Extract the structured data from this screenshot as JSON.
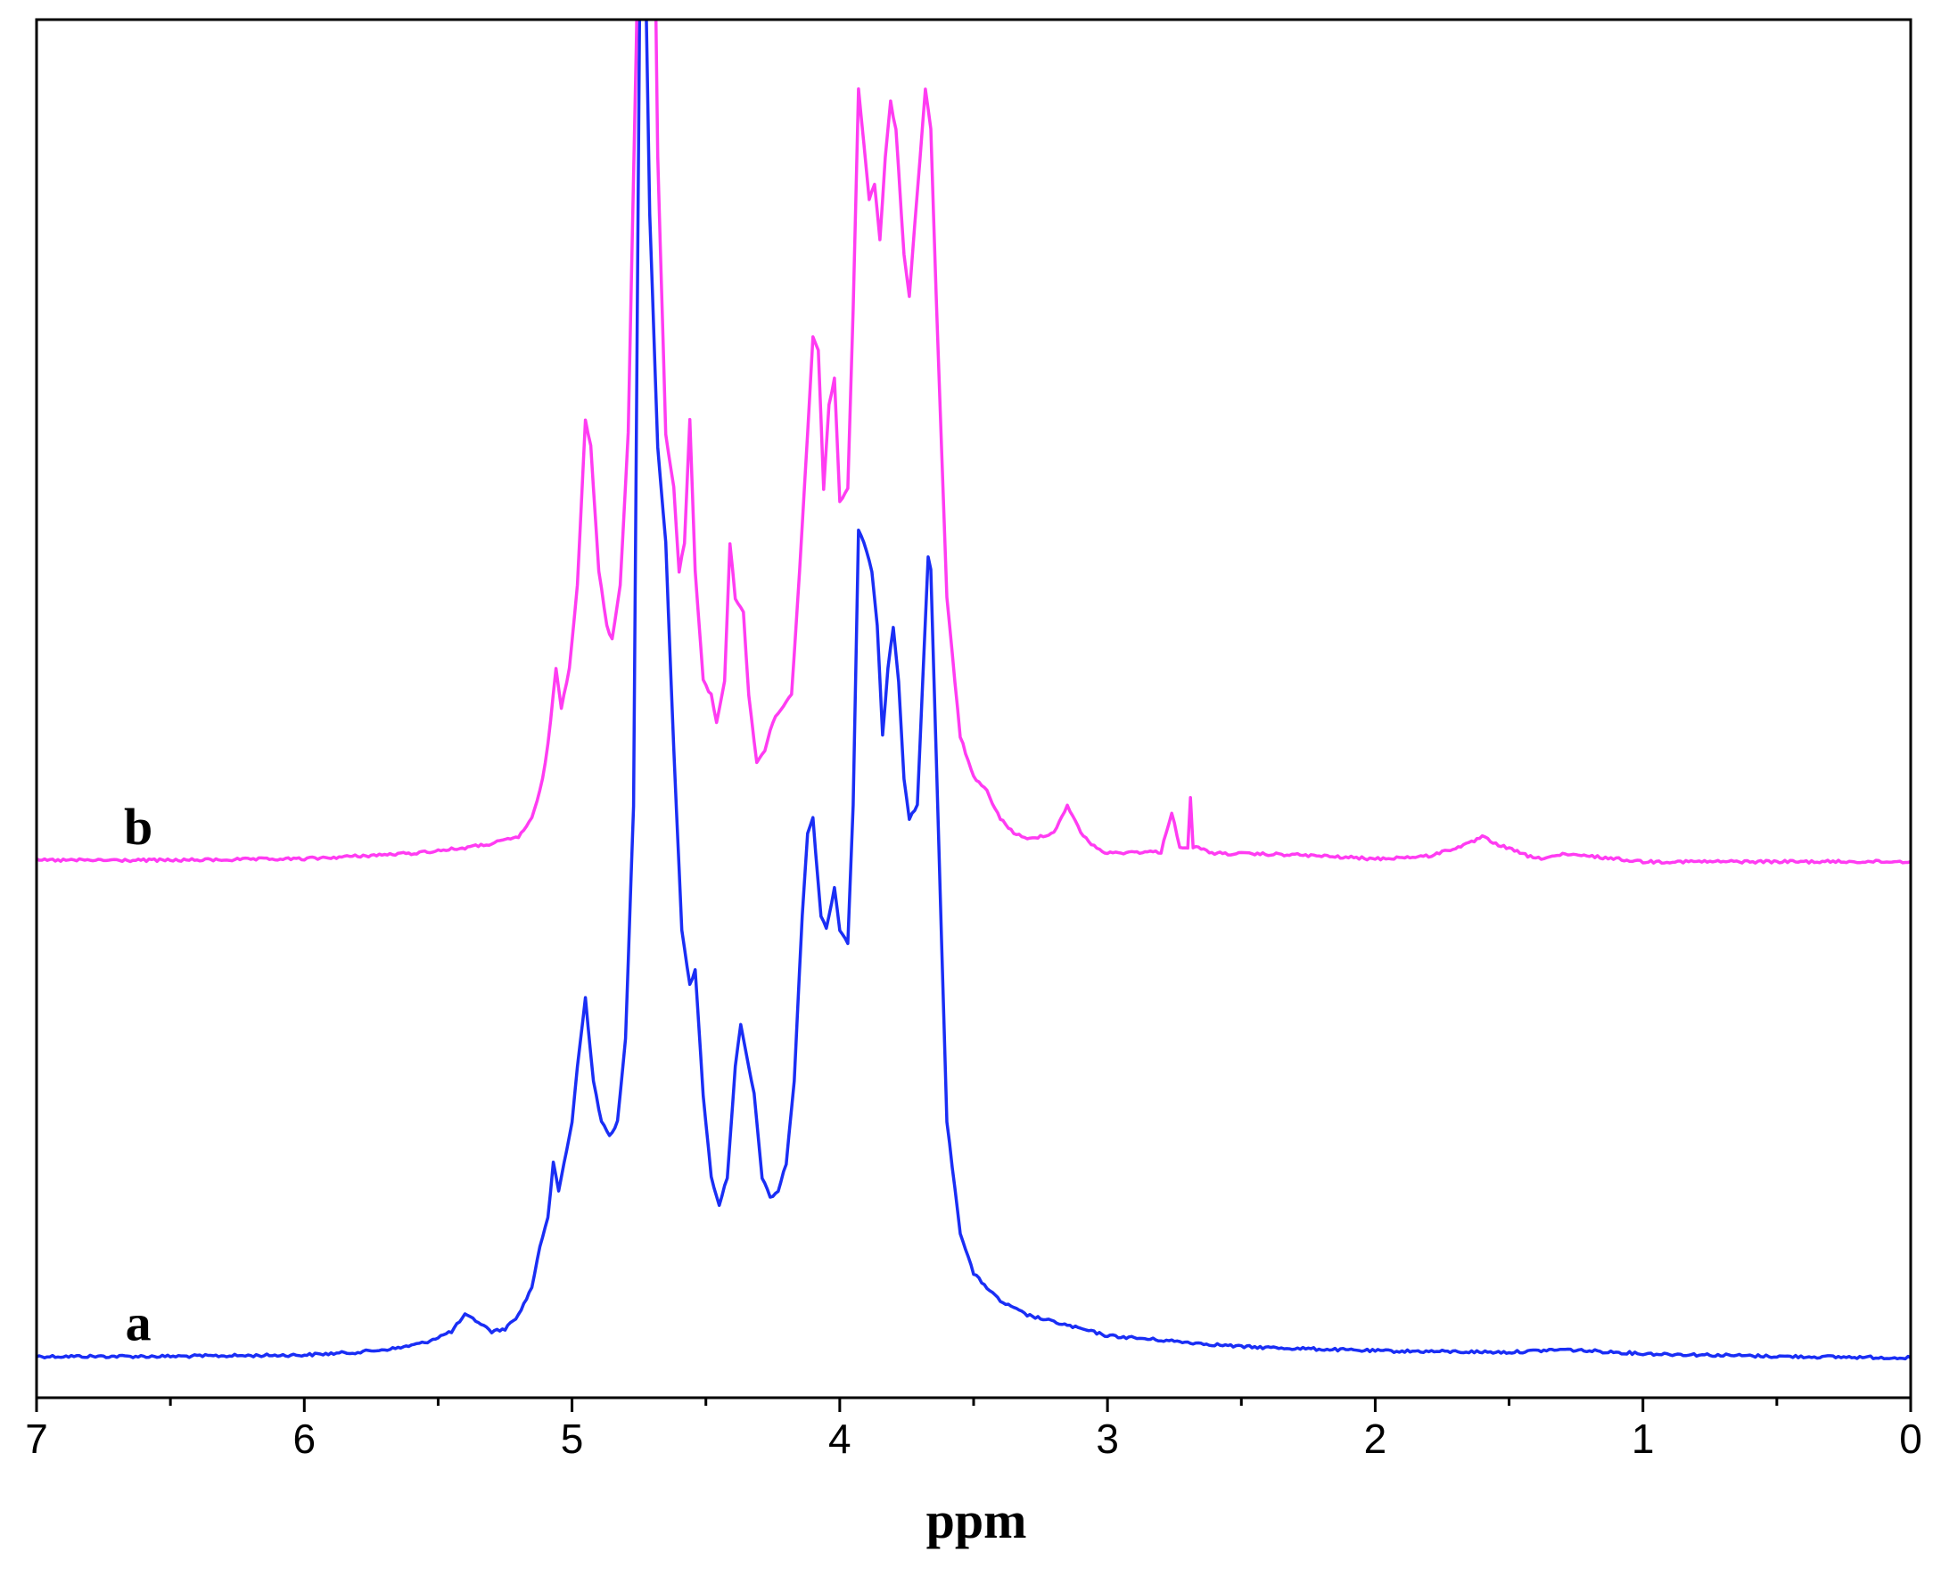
{
  "chart_data": {
    "type": "line",
    "title": "",
    "xlabel": "ppm",
    "ylabel": "",
    "xlim": [
      7,
      0
    ],
    "x_reversed": true,
    "ylim": [
      0,
      1
    ],
    "grid": false,
    "legend": "none",
    "x_ticks": [
      7,
      6,
      5,
      4,
      3,
      2,
      1,
      0
    ],
    "x_tick_labels": [
      "7",
      "6",
      "5",
      "4",
      "3",
      "2",
      "1",
      "0"
    ],
    "series": [
      {
        "label": "a",
        "color": "#1a2ef5",
        "baseline": 0.03,
        "points": [
          [
            7.0,
            0.03
          ],
          [
            6.5,
            0.03
          ],
          [
            6.0,
            0.031
          ],
          [
            5.8,
            0.033
          ],
          [
            5.65,
            0.036
          ],
          [
            5.55,
            0.04
          ],
          [
            5.45,
            0.048
          ],
          [
            5.4,
            0.06
          ],
          [
            5.35,
            0.055
          ],
          [
            5.3,
            0.048
          ],
          [
            5.25,
            0.05
          ],
          [
            5.2,
            0.06
          ],
          [
            5.15,
            0.08
          ],
          [
            5.12,
            0.11
          ],
          [
            5.09,
            0.13
          ],
          [
            5.07,
            0.17
          ],
          [
            5.05,
            0.15
          ],
          [
            5.02,
            0.18
          ],
          [
            5.0,
            0.2
          ],
          [
            4.98,
            0.24
          ],
          [
            4.95,
            0.29
          ],
          [
            4.92,
            0.23
          ],
          [
            4.89,
            0.2
          ],
          [
            4.86,
            0.19
          ],
          [
            4.83,
            0.2
          ],
          [
            4.8,
            0.26
          ],
          [
            4.77,
            0.43
          ],
          [
            4.74,
            1.2
          ],
          [
            4.71,
            0.86
          ],
          [
            4.68,
            0.69
          ],
          [
            4.65,
            0.62
          ],
          [
            4.62,
            0.47
          ],
          [
            4.59,
            0.34
          ],
          [
            4.56,
            0.3
          ],
          [
            4.54,
            0.31
          ],
          [
            4.51,
            0.22
          ],
          [
            4.48,
            0.16
          ],
          [
            4.45,
            0.14
          ],
          [
            4.42,
            0.16
          ],
          [
            4.39,
            0.24
          ],
          [
            4.37,
            0.27
          ],
          [
            4.35,
            0.25
          ],
          [
            4.32,
            0.22
          ],
          [
            4.29,
            0.16
          ],
          [
            4.26,
            0.145
          ],
          [
            4.23,
            0.15
          ],
          [
            4.2,
            0.17
          ],
          [
            4.17,
            0.23
          ],
          [
            4.14,
            0.35
          ],
          [
            4.12,
            0.41
          ],
          [
            4.1,
            0.42
          ],
          [
            4.07,
            0.35
          ],
          [
            4.05,
            0.34
          ],
          [
            4.02,
            0.37
          ],
          [
            4.0,
            0.34
          ],
          [
            3.97,
            0.33
          ],
          [
            3.95,
            0.43
          ],
          [
            3.93,
            0.63
          ],
          [
            3.91,
            0.62
          ],
          [
            3.88,
            0.6
          ],
          [
            3.86,
            0.56
          ],
          [
            3.84,
            0.48
          ],
          [
            3.82,
            0.53
          ],
          [
            3.8,
            0.56
          ],
          [
            3.78,
            0.52
          ],
          [
            3.76,
            0.45
          ],
          [
            3.74,
            0.42
          ],
          [
            3.71,
            0.43
          ],
          [
            3.69,
            0.52
          ],
          [
            3.67,
            0.61
          ],
          [
            3.66,
            0.6
          ],
          [
            3.63,
            0.4
          ],
          [
            3.6,
            0.2
          ],
          [
            3.55,
            0.12
          ],
          [
            3.5,
            0.09
          ],
          [
            3.4,
            0.07
          ],
          [
            3.3,
            0.06
          ],
          [
            3.0,
            0.045
          ],
          [
            2.5,
            0.037
          ],
          [
            2.0,
            0.034
          ],
          [
            1.5,
            0.033
          ],
          [
            1.3,
            0.035
          ],
          [
            1.0,
            0.032
          ],
          [
            0.5,
            0.03
          ],
          [
            0.0,
            0.029
          ]
        ]
      },
      {
        "label": "b",
        "color": "#ff3cf2",
        "baseline": 0.39,
        "points": [
          [
            7.0,
            0.39
          ],
          [
            6.5,
            0.39
          ],
          [
            6.0,
            0.391
          ],
          [
            5.8,
            0.393
          ],
          [
            5.6,
            0.395
          ],
          [
            5.4,
            0.399
          ],
          [
            5.3,
            0.402
          ],
          [
            5.2,
            0.407
          ],
          [
            5.15,
            0.42
          ],
          [
            5.12,
            0.44
          ],
          [
            5.1,
            0.46
          ],
          [
            5.08,
            0.49
          ],
          [
            5.06,
            0.53
          ],
          [
            5.04,
            0.5
          ],
          [
            5.01,
            0.53
          ],
          [
            4.98,
            0.59
          ],
          [
            4.95,
            0.71
          ],
          [
            4.93,
            0.69
          ],
          [
            4.9,
            0.6
          ],
          [
            4.87,
            0.56
          ],
          [
            4.85,
            0.55
          ],
          [
            4.82,
            0.59
          ],
          [
            4.79,
            0.7
          ],
          [
            4.76,
            0.98
          ],
          [
            4.74,
            1.2
          ],
          [
            4.7,
            1.2
          ],
          [
            4.68,
            0.9
          ],
          [
            4.65,
            0.7
          ],
          [
            4.62,
            0.66
          ],
          [
            4.6,
            0.6
          ],
          [
            4.58,
            0.62
          ],
          [
            4.56,
            0.71
          ],
          [
            4.54,
            0.6
          ],
          [
            4.51,
            0.52
          ],
          [
            4.48,
            0.51
          ],
          [
            4.46,
            0.49
          ],
          [
            4.43,
            0.52
          ],
          [
            4.41,
            0.62
          ],
          [
            4.39,
            0.58
          ],
          [
            4.36,
            0.57
          ],
          [
            4.34,
            0.51
          ],
          [
            4.31,
            0.46
          ],
          [
            4.28,
            0.47
          ],
          [
            4.25,
            0.49
          ],
          [
            4.22,
            0.5
          ],
          [
            4.18,
            0.51
          ],
          [
            4.15,
            0.6
          ],
          [
            4.12,
            0.7
          ],
          [
            4.1,
            0.77
          ],
          [
            4.08,
            0.76
          ],
          [
            4.06,
            0.66
          ],
          [
            4.04,
            0.72
          ],
          [
            4.02,
            0.74
          ],
          [
            4.0,
            0.65
          ],
          [
            3.97,
            0.66
          ],
          [
            3.95,
            0.79
          ],
          [
            3.93,
            0.95
          ],
          [
            3.91,
            0.91
          ],
          [
            3.89,
            0.87
          ],
          [
            3.87,
            0.88
          ],
          [
            3.85,
            0.84
          ],
          [
            3.83,
            0.9
          ],
          [
            3.81,
            0.94
          ],
          [
            3.79,
            0.92
          ],
          [
            3.76,
            0.83
          ],
          [
            3.74,
            0.8
          ],
          [
            3.72,
            0.85
          ],
          [
            3.7,
            0.9
          ],
          [
            3.68,
            0.95
          ],
          [
            3.66,
            0.92
          ],
          [
            3.64,
            0.8
          ],
          [
            3.6,
            0.58
          ],
          [
            3.55,
            0.48
          ],
          [
            3.5,
            0.45
          ],
          [
            3.45,
            0.44
          ],
          [
            3.4,
            0.42
          ],
          [
            3.35,
            0.41
          ],
          [
            3.3,
            0.405
          ],
          [
            3.2,
            0.41
          ],
          [
            3.15,
            0.43
          ],
          [
            3.1,
            0.41
          ],
          [
            3.05,
            0.4
          ],
          [
            3.0,
            0.395
          ],
          [
            2.9,
            0.396
          ],
          [
            2.8,
            0.396
          ],
          [
            2.76,
            0.425
          ],
          [
            2.73,
            0.4
          ],
          [
            2.7,
            0.398
          ],
          [
            2.69,
            0.435
          ],
          [
            2.68,
            0.4
          ],
          [
            2.6,
            0.395
          ],
          [
            2.3,
            0.394
          ],
          [
            2.0,
            0.391
          ],
          [
            1.8,
            0.393
          ],
          [
            1.65,
            0.402
          ],
          [
            1.6,
            0.407
          ],
          [
            1.55,
            0.402
          ],
          [
            1.4,
            0.391
          ],
          [
            1.3,
            0.394
          ],
          [
            1.2,
            0.393
          ],
          [
            1.0,
            0.389
          ],
          [
            0.5,
            0.389
          ],
          [
            0.0,
            0.389
          ]
        ]
      }
    ]
  }
}
